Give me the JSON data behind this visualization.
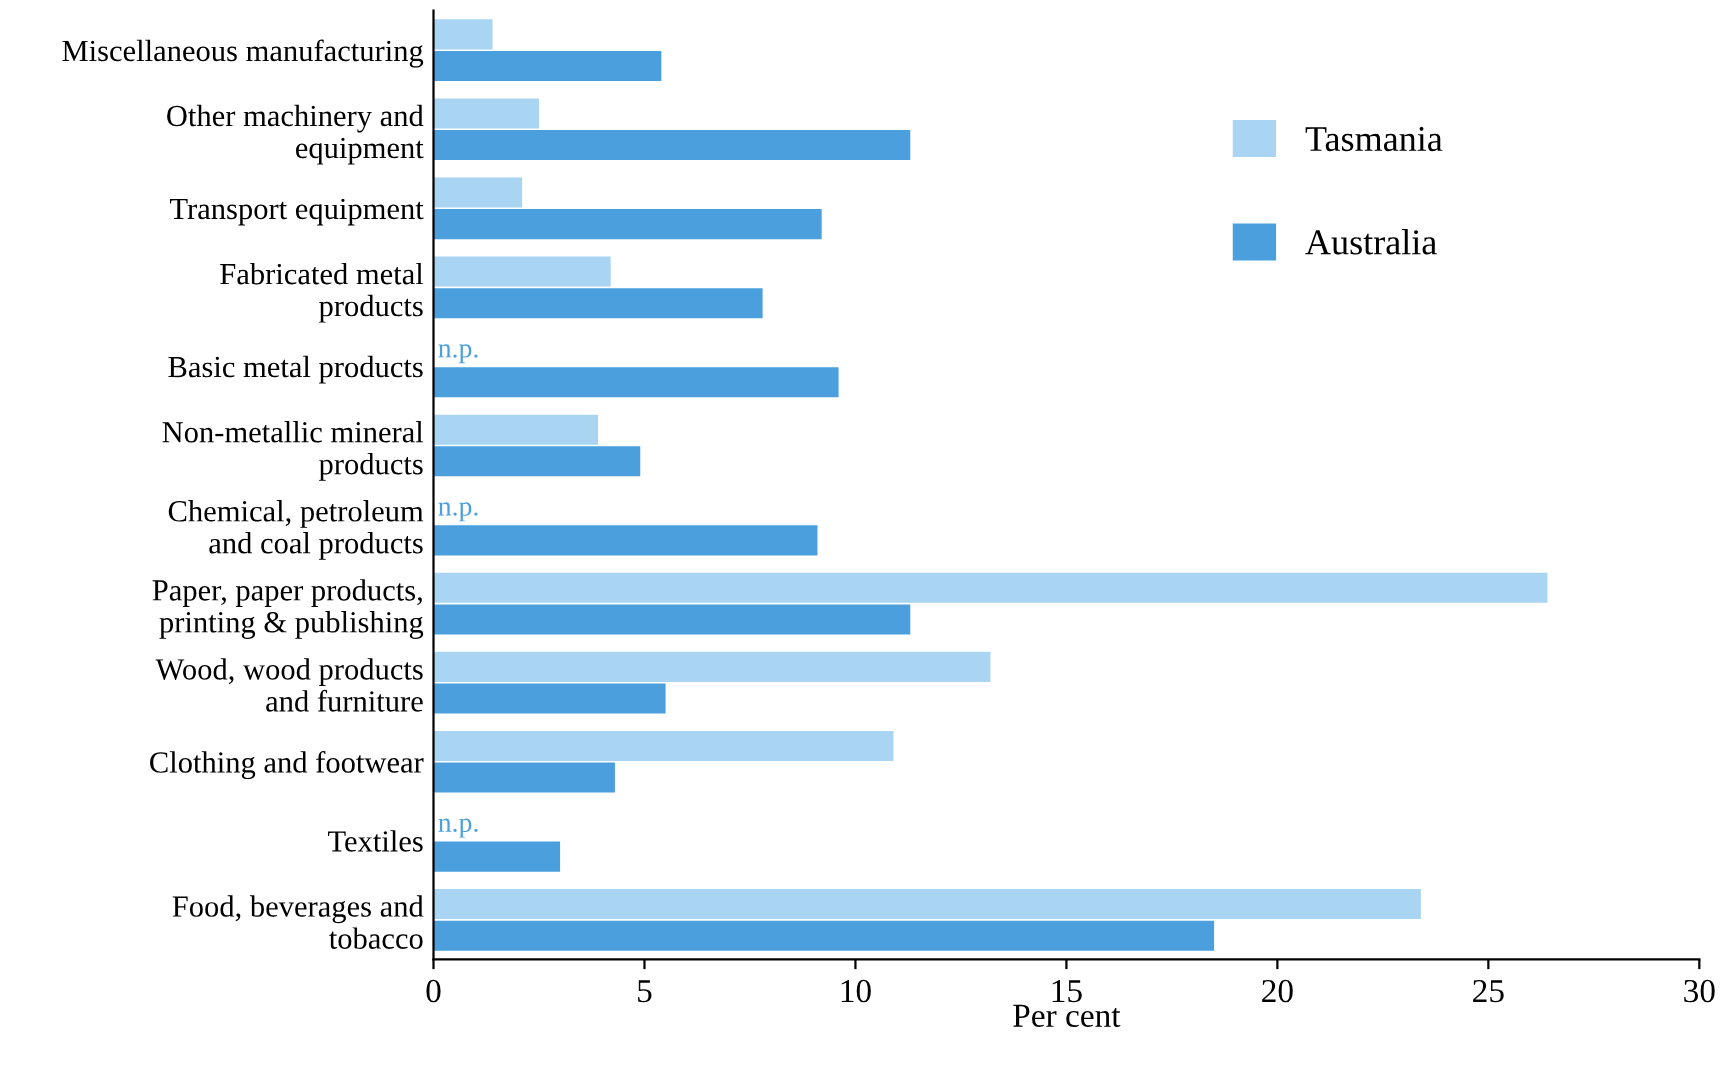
{
  "chart_data": {
    "type": "bar",
    "orientation": "horizontal",
    "xlabel": "Per cent",
    "categories": [
      "Miscellaneous manufacturing",
      "Other machinery and\nequipment",
      "Transport equipment",
      "Fabricated metal\nproducts",
      "Basic metal products",
      "Non-metallic mineral\nproducts",
      "Chemical, petroleum\nand coal products",
      "Paper, paper products,\nprinting & publishing",
      "Wood, wood products\nand furniture",
      "Clothing and footwear",
      "Textiles",
      "Food, beverages and\ntobacco"
    ],
    "series": [
      {
        "name": "Tasmania",
        "color": "#a9d4f2",
        "values": [
          1.4,
          2.5,
          2.1,
          4.2,
          null,
          3.9,
          null,
          26.4,
          13.2,
          10.9,
          null,
          23.4
        ],
        "value_labels": [
          null,
          null,
          null,
          null,
          "n.p.",
          null,
          "n.p.",
          null,
          null,
          null,
          "n.p.",
          null
        ]
      },
      {
        "name": "Australia",
        "color": "#4a9fdc",
        "values": [
          5.4,
          11.3,
          9.2,
          7.8,
          9.6,
          4.9,
          9.1,
          11.3,
          5.5,
          4.3,
          3.0,
          18.5
        ]
      }
    ],
    "xlim": [
      0,
      30
    ],
    "xticks": [
      0,
      5,
      10,
      15,
      20,
      25,
      30
    ],
    "grid": false,
    "legend": "top right"
  }
}
